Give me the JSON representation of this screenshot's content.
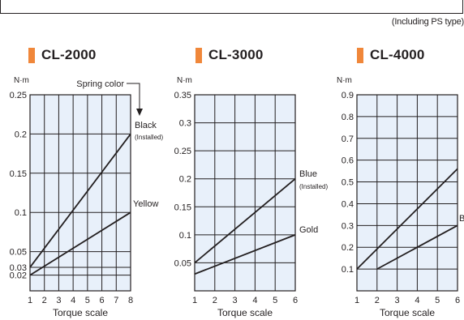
{
  "note": "(Including PS type)",
  "chart_data": [
    {
      "type": "line",
      "title": "CL-2000",
      "ylabel": "N·m",
      "xlabel": "Torque scale",
      "xlim": [
        1,
        8
      ],
      "ylim": [
        0,
        0.25
      ],
      "xticks": [
        "1",
        "2",
        "3",
        "4",
        "5",
        "6",
        "7",
        "8"
      ],
      "ytick_values": [
        0.25,
        0.2,
        0.15,
        0.1,
        0.05,
        0.03,
        0.02
      ],
      "yticks": [
        "0.25",
        "0.2",
        "0.15",
        "0.1",
        "0.05",
        "0.03",
        "0.02"
      ],
      "grid": true,
      "annotation": "Spring color",
      "series": [
        {
          "name": "Black",
          "sub": "(Installed)",
          "x": [
            1,
            8
          ],
          "y": [
            0.03,
            0.2
          ]
        },
        {
          "name": "Yellow",
          "sub": "",
          "x": [
            1,
            8
          ],
          "y": [
            0.02,
            0.1
          ]
        }
      ]
    },
    {
      "type": "line",
      "title": "CL-3000",
      "ylabel": "N·m",
      "xlabel": "Torque scale",
      "xlim": [
        1,
        6
      ],
      "ylim": [
        0,
        0.35
      ],
      "xticks": [
        "1",
        "2",
        "3",
        "4",
        "5",
        "6"
      ],
      "ytick_values": [
        0.35,
        0.3,
        0.25,
        0.2,
        0.15,
        0.1,
        0.05
      ],
      "yticks": [
        "0.35",
        "0.3",
        "0.25",
        "0.2",
        "0.15",
        "0.1",
        "0.05"
      ],
      "grid": true,
      "series": [
        {
          "name": "Blue",
          "sub": "(Installed)",
          "x": [
            1,
            6
          ],
          "y": [
            0.05,
            0.2
          ]
        },
        {
          "name": "Gold",
          "sub": "",
          "x": [
            1,
            6
          ],
          "y": [
            0.03,
            0.1
          ]
        }
      ]
    },
    {
      "type": "line",
      "title": "CL-4000",
      "ylabel": "N·m",
      "xlabel": "Torque scale",
      "xlim": [
        1,
        6
      ],
      "ylim": [
        0,
        0.9
      ],
      "xticks": [
        "1",
        "2",
        "3",
        "4",
        "5",
        "6"
      ],
      "ytick_values": [
        0.9,
        0.8,
        0.7,
        0.6,
        0.5,
        0.4,
        0.3,
        0.2,
        0.1
      ],
      "yticks": [
        "0.9",
        "0.8",
        "0.7",
        "0.6",
        "0.5",
        "0.4",
        "0.3",
        "0.2",
        "0.1"
      ],
      "grid": true,
      "series": [
        {
          "name": "",
          "sub": "",
          "x": [
            1,
            6
          ],
          "y": [
            0.1,
            0.56
          ]
        },
        {
          "name": "B",
          "sub": "",
          "x": [
            2,
            6
          ],
          "y": [
            0.1,
            0.3
          ]
        }
      ]
    }
  ],
  "colors": {
    "plot_bg": "#e8f0fa",
    "accent": "#f0873a",
    "ink": "#231f20"
  }
}
